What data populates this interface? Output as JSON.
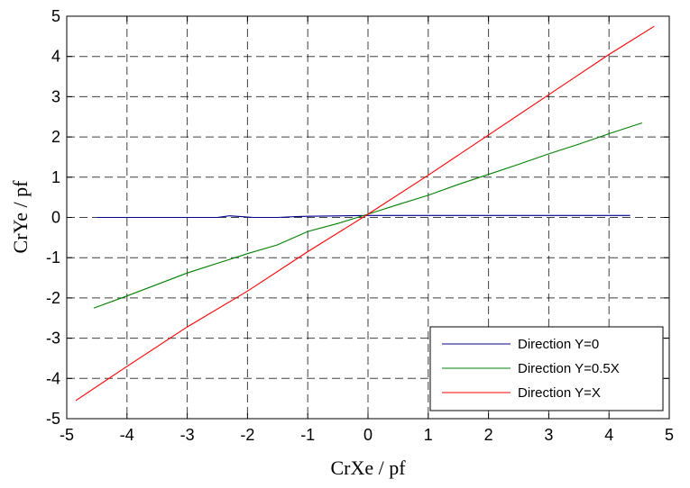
{
  "chart_data": {
    "type": "line",
    "title": "",
    "xlabel": "CrXe / pf",
    "ylabel": "CrYe / pf",
    "xlim": [
      -5,
      5
    ],
    "ylim": [
      -5,
      5
    ],
    "xticks": [
      -5,
      -4,
      -3,
      -2,
      -1,
      0,
      1,
      2,
      3,
      4,
      5
    ],
    "yticks": [
      -5,
      -4,
      -3,
      -2,
      -1,
      0,
      1,
      2,
      3,
      4,
      5
    ],
    "grid": true,
    "grid_style": "dashed",
    "legend_position": "bottom-right",
    "series": [
      {
        "name": "Direction Y=0",
        "color": "#00008b",
        "points": [
          [
            -4.5,
            0.0
          ],
          [
            -3.0,
            0.0
          ],
          [
            -2.5,
            0.0
          ],
          [
            -2.3,
            0.04
          ],
          [
            -2.1,
            0.02
          ],
          [
            -1.9,
            0.0
          ],
          [
            -1.5,
            0.0
          ],
          [
            -1.2,
            0.02
          ],
          [
            -1.0,
            0.03
          ],
          [
            0.0,
            0.05
          ],
          [
            2.0,
            0.05
          ],
          [
            4.35,
            0.05
          ]
        ]
      },
      {
        "name": "Direction Y=0.5X",
        "color": "#008000",
        "points": [
          [
            -4.55,
            -2.25
          ],
          [
            -4.0,
            -1.95
          ],
          [
            -3.0,
            -1.38
          ],
          [
            -2.0,
            -0.9
          ],
          [
            -1.5,
            -0.68
          ],
          [
            -1.0,
            -0.35
          ],
          [
            -0.5,
            -0.15
          ],
          [
            0.0,
            0.08
          ],
          [
            0.5,
            0.32
          ],
          [
            1.0,
            0.55
          ],
          [
            1.5,
            0.82
          ],
          [
            2.0,
            1.07
          ],
          [
            2.5,
            1.32
          ],
          [
            3.0,
            1.58
          ],
          [
            3.5,
            1.82
          ],
          [
            4.0,
            2.08
          ],
          [
            4.55,
            2.35
          ]
        ]
      },
      {
        "name": "Direction Y=X",
        "color": "#ff0000",
        "points": [
          [
            -4.85,
            -4.55
          ],
          [
            -4.0,
            -3.7
          ],
          [
            -3.0,
            -2.72
          ],
          [
            -2.0,
            -1.83
          ],
          [
            -1.0,
            -0.85
          ],
          [
            0.0,
            0.08
          ],
          [
            1.0,
            1.05
          ],
          [
            2.0,
            2.05
          ],
          [
            3.0,
            3.05
          ],
          [
            4.0,
            4.05
          ],
          [
            4.75,
            4.75
          ]
        ]
      }
    ]
  }
}
